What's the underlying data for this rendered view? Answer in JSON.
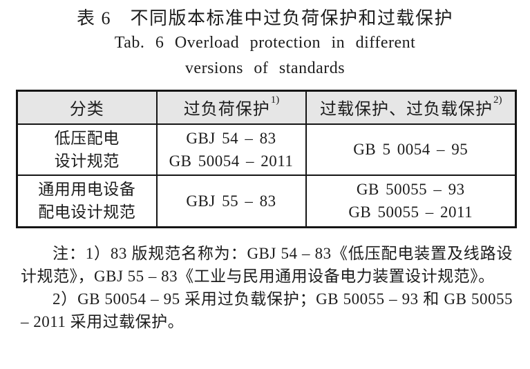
{
  "caption": {
    "zh": "表 6　不同版本标准中过负荷保护和过载保护",
    "en_line1": "Tab. 6  Overload protection in different",
    "en_line2": "versions of standards"
  },
  "table": {
    "header": {
      "col1": "分类",
      "col2_text": "过负荷保护",
      "col2_sup": "1)",
      "col3_text": "过载保护、过负载保护",
      "col3_sup": "2)"
    },
    "rows": [
      {
        "category_line1": "低压配电",
        "category_line2": "设计规范",
        "overload_line1": "GBJ 54 – 83",
        "overload_line2": "GB 50054 – 2011",
        "overload2_line1": "GB 5 0054 – 95"
      },
      {
        "category_line1": "通用用电设备",
        "category_line2": "配电设计规范",
        "overload_line1": "GBJ 55 – 83",
        "overload2_line1": "GB 50055 – 93",
        "overload2_line2": "GB 50055 – 2011"
      }
    ]
  },
  "notes": {
    "note1": "注：1）83 版规范名称为：GBJ 54 – 83《低压配电装置及线路设计规范》，GBJ 55 – 83《工业与民用通用设备电力装置设计规范》。",
    "note2": "2）GB 50054 – 95 采用过负载保护；GB 50055 – 93 和 GB 50055 – 2011 采用过载保护。"
  },
  "colors": {
    "page_background": "#ffffff",
    "header_background": "#e6e6e6",
    "border": "#151515",
    "text": "#1c1c1c"
  }
}
